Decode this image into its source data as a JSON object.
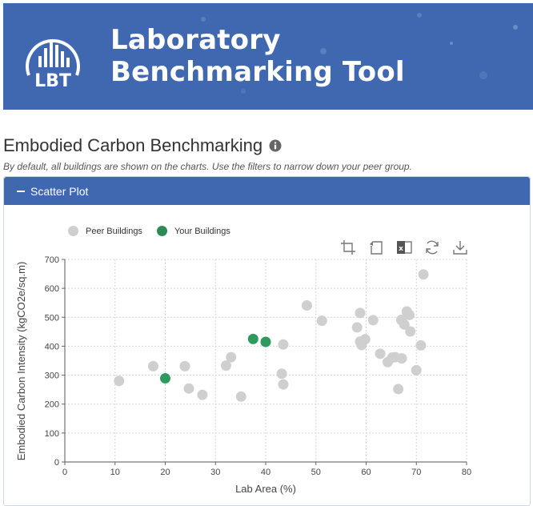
{
  "banner": {
    "logo_text": "LBT",
    "title_line1": "Laboratory",
    "title_line2": "Benchmarking Tool",
    "background_color": "#3f68b0"
  },
  "page": {
    "title": "Embodied Carbon Benchmarking",
    "subtitle": "By default, all buildings are shown on the charts. Use the filters to narrow down your peer group."
  },
  "panel": {
    "header_label": "Scatter Plot",
    "header_icon": "minus-icon"
  },
  "toolbar": {
    "icons": [
      "crop-icon",
      "undo-icon",
      "excel-icon",
      "refresh-icon",
      "download-icon"
    ]
  },
  "chart_data": {
    "type": "scatter",
    "xlabel": "Lab Area (%)",
    "ylabel": "Embodied Carbon Intensity (kgCO2e/sq.m)",
    "xlim": [
      0,
      80
    ],
    "ylim": [
      0,
      700
    ],
    "xticks": [
      0,
      10,
      20,
      30,
      40,
      50,
      60,
      70,
      80
    ],
    "yticks": [
      0,
      100,
      200,
      300,
      400,
      500,
      600,
      700
    ],
    "grid": true,
    "legend_position": "top-left",
    "series": [
      {
        "name": "Peer Buildings",
        "color": "#cfcfcf",
        "points": [
          [
            10.8,
            280
          ],
          [
            17.6,
            331
          ],
          [
            23.9,
            331
          ],
          [
            24.7,
            254
          ],
          [
            27.4,
            232
          ],
          [
            32.1,
            333
          ],
          [
            33.1,
            362
          ],
          [
            35.1,
            226
          ],
          [
            43.2,
            305
          ],
          [
            43.5,
            406
          ],
          [
            43.5,
            268
          ],
          [
            48.2,
            541
          ],
          [
            51.2,
            488
          ],
          [
            58.2,
            465
          ],
          [
            58.8,
            515
          ],
          [
            58.8,
            416
          ],
          [
            59.1,
            404
          ],
          [
            59.8,
            424
          ],
          [
            61.4,
            490
          ],
          [
            62.8,
            374
          ],
          [
            64.3,
            345
          ],
          [
            65.2,
            361
          ],
          [
            65.8,
            362
          ],
          [
            66.4,
            252
          ],
          [
            67.0,
            491
          ],
          [
            67.1,
            358
          ],
          [
            67.6,
            475
          ],
          [
            68.1,
            520
          ],
          [
            68.6,
            508
          ],
          [
            68.8,
            451
          ],
          [
            70.0,
            317
          ],
          [
            70.9,
            403
          ],
          [
            71.4,
            648
          ]
        ]
      },
      {
        "name": "Your Buildings",
        "color": "#3a9b61",
        "points": [
          [
            20.0,
            289
          ],
          [
            37.5,
            425
          ],
          [
            40.0,
            415
          ]
        ]
      }
    ]
  }
}
